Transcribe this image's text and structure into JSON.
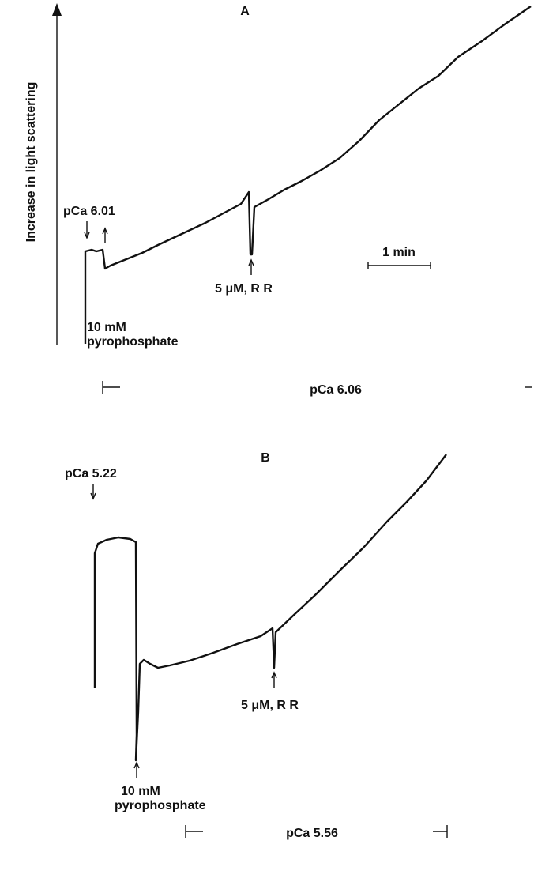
{
  "y_axis_label": "Increase in light scattering",
  "panels": [
    {
      "label": "A",
      "start": "pCa 6.01",
      "agent_line1": "10 mM",
      "agent_line2": "pyrophosphate",
      "inhibitor": "5 μM, R R",
      "scale": "1 min",
      "final": "pCa 6.06"
    },
    {
      "label": "B",
      "start": "pCa 5.22",
      "agent_line1": "10 mM",
      "agent_line2": "pyrophosphate",
      "inhibitor": "5 μM, R R",
      "final": "pCa 5.56"
    }
  ]
}
